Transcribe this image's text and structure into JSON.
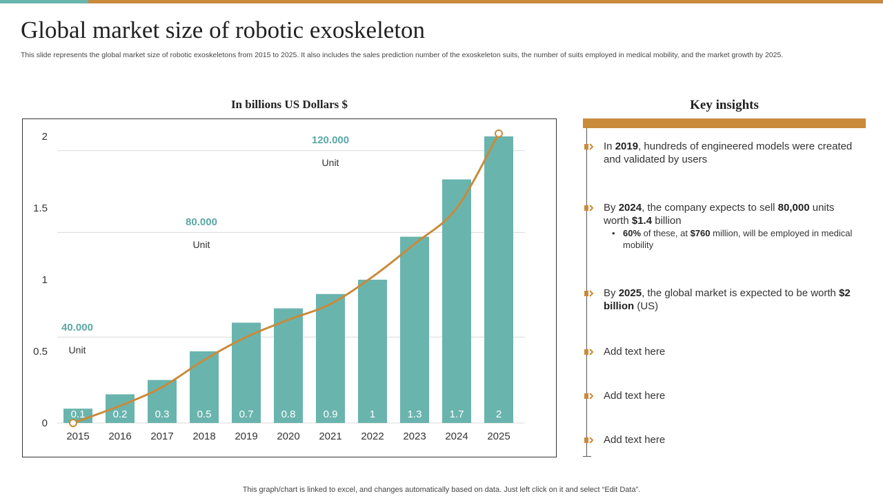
{
  "page": {
    "title": "Global market size of robotic exoskeleton",
    "subtitle": "This slide represents the global market size of robotic exoskeletons from 2015 to 2025. It also includes the sales prediction number of the exoskeleton suits, the number of suits employed in medical mobility, and the market growth by 2025.",
    "footer": "This graph/chart is linked to excel,  and changes automatically based on data. Just left click on it and select “Edit Data”."
  },
  "colors": {
    "teal": "#6ab4ae",
    "orange": "#c98a3a",
    "label_teal": "#5aa7a5"
  },
  "chart_data": {
    "type": "bar",
    "title": "In billions US Dollars $",
    "categories": [
      "2015",
      "2016",
      "2017",
      "2018",
      "2019",
      "2020",
      "2021",
      "2022",
      "2023",
      "2024",
      "2025"
    ],
    "values": [
      0.1,
      0.2,
      0.3,
      0.5,
      0.7,
      0.8,
      0.9,
      1,
      1.3,
      1.7,
      2
    ],
    "value_labels": [
      "0.1",
      "0.2",
      "0.3",
      "0.5",
      "0.7",
      "0.8",
      "0.9",
      "1",
      "1.3",
      "1.7",
      "2"
    ],
    "yticks": [
      0,
      0.5,
      1,
      1.5,
      2
    ],
    "ytick_labels": [
      "0",
      "0.5",
      "1",
      "1.5",
      "2"
    ],
    "ylim": [
      0,
      2
    ],
    "line_series": {
      "name": "Units",
      "values": [
        0,
        0.12,
        0.25,
        0.44,
        0.6,
        0.72,
        0.83,
        1.02,
        1.25,
        1.5,
        2.02
      ]
    },
    "secondary_gridlines": [
      0.6,
      1.33,
      1.9
    ],
    "annotations": [
      {
        "value": "40.000",
        "unit": "Unit"
      },
      {
        "value": "80.000",
        "unit": "Unit"
      },
      {
        "value": "120.000",
        "unit": "Unit"
      }
    ]
  },
  "insights": {
    "title": "Key insights",
    "items": [
      {
        "pre": "In ",
        "b1": "2019",
        "mid": ", hundreds of engineered models were created and validated by users"
      },
      {
        "pre": "By ",
        "b1": "2024",
        "mid": ", the company expects to sell ",
        "b2": "80,000",
        "mid2": " units worth ",
        "b3": "$1.4",
        "post": " billion",
        "sub": {
          "b1": "60%",
          "mid": " of these, at ",
          "b2": "$760",
          "post": " million, will be employed in medical mobility"
        }
      },
      {
        "pre": "By ",
        "b1": "2025",
        "mid": ", the global market is expected to be worth ",
        "b2": "$2 billion",
        "post": " (US)"
      },
      {
        "text": "Add text here"
      },
      {
        "text": "Add text here"
      },
      {
        "text": "Add text here"
      }
    ]
  }
}
